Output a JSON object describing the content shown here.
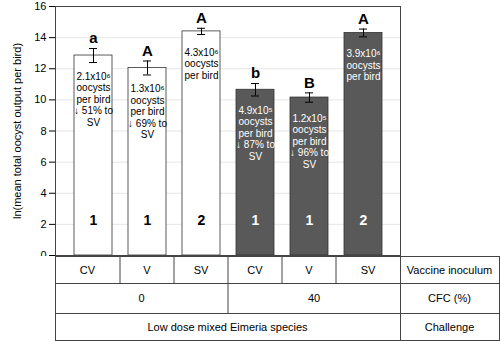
{
  "chart_data": {
    "type": "bar",
    "y_label": "ln(mean total oocyst output per bird)",
    "categories": [
      "CV",
      "V",
      "SV",
      "CV",
      "V",
      "SV"
    ],
    "values": [
      12.85,
      12.05,
      14.4,
      10.65,
      10.15,
      14.3
    ],
    "errors": [
      0.45,
      0.45,
      0.2,
      0.4,
      0.3,
      0.25
    ],
    "colors": [
      "#ffffff",
      "#ffffff",
      "#ffffff",
      "#595959",
      "#595959",
      "#595959"
    ],
    "significance_letters": [
      "a",
      "A",
      "A",
      "b",
      "B",
      "A"
    ],
    "bar_annotations": [
      "2.1x10⁶\noocysts\nper bird\n↓ 51% to\nSV",
      "1.3x10⁶\noocysts\nper bird\n↓ 69% to\nSV",
      "4.3x10⁶\noocysts\nper bird",
      "4.9x10⁵\noocysts\nper bird\n↓ 87% to\nSV",
      "1.2x10⁵\noocysts\nper bird\n↓ 96% to\nSV",
      "3.9x10⁶\noocysts\nper bird"
    ],
    "rank_labels": [
      "1",
      "1",
      "2",
      "1",
      "1",
      "2"
    ],
    "x_label": "Vaccine inoculum",
    "groups": [
      {
        "label": "CFC (%)",
        "spans": [
          {
            "text": "0",
            "count": 3
          },
          {
            "text": "40",
            "count": 3
          }
        ]
      },
      {
        "label": "Challenge",
        "spans": [
          {
            "text": "Low dose mixed Eimeria species",
            "count": 6
          }
        ]
      }
    ],
    "ylim": [
      0,
      16
    ],
    "yticks": [
      0,
      2,
      4,
      6,
      8,
      10,
      12,
      14,
      16
    ],
    "grid": true
  }
}
